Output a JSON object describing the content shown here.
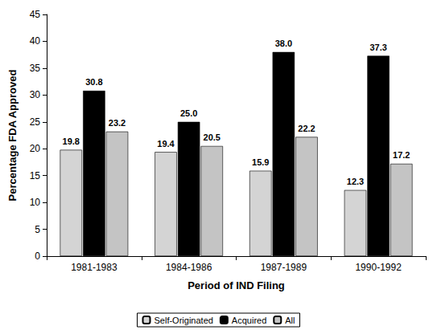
{
  "chart_data": {
    "type": "bar",
    "categories": [
      "1981-1983",
      "1984-1986",
      "1987-1989",
      "1990-1992"
    ],
    "series": [
      {
        "name": "Self-Originated",
        "color": "#d4d4d4",
        "values": [
          19.8,
          19.4,
          15.9,
          12.3
        ]
      },
      {
        "name": "Acquired",
        "color": "#000000",
        "values": [
          30.8,
          25.0,
          38.0,
          37.3
        ],
        "value_labels": [
          "30.8",
          "25.0",
          "38.0",
          "37.3"
        ]
      },
      {
        "name": "All",
        "color": "#c4c4c4",
        "values": [
          23.2,
          20.5,
          22.2,
          17.2
        ]
      }
    ],
    "x_label": "Period of IND Filing",
    "y_label": "Percentage FDA Approved",
    "ylim": [
      0,
      45
    ],
    "yticks": [
      0,
      5,
      10,
      15,
      20,
      25,
      30,
      35,
      40,
      45
    ],
    "grid": false,
    "legend": "bottom",
    "data_labels": true
  }
}
